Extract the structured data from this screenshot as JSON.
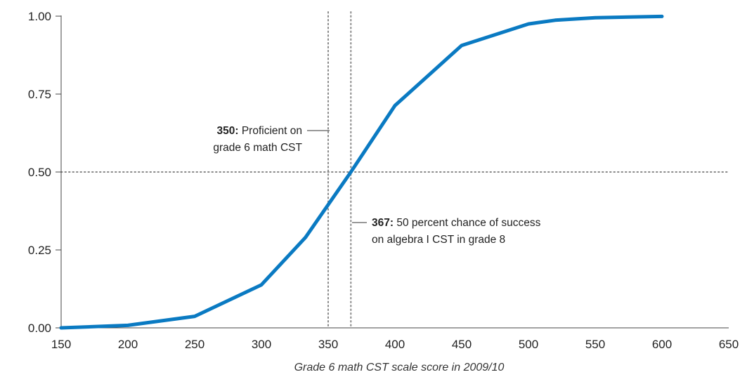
{
  "chart_data": {
    "type": "line",
    "xlabel": "Grade 6 math CST scale score in 2009/10",
    "ylabel": "",
    "xlim": [
      150,
      650
    ],
    "ylim": [
      0,
      1
    ],
    "x_ticks": [
      150,
      200,
      250,
      300,
      350,
      400,
      450,
      500,
      550,
      600,
      650
    ],
    "x_tick_labels": [
      "150",
      "200",
      "250",
      "300",
      "350",
      "400",
      "450",
      "500",
      "550",
      "600",
      "650"
    ],
    "y_ticks": [
      0,
      0.25,
      0.5,
      0.75,
      1
    ],
    "y_tick_labels": [
      "0.00",
      "0.25",
      "0.50",
      "0.75",
      "1.00"
    ],
    "grid": false,
    "series": [
      {
        "color": "#0a7ac2",
        "points": [
          [
            150,
            0.0
          ],
          [
            200,
            0.008
          ],
          [
            250,
            0.037
          ],
          [
            300,
            0.138
          ],
          [
            333,
            0.29
          ],
          [
            367,
            0.5
          ],
          [
            400,
            0.713
          ],
          [
            450,
            0.906
          ],
          [
            500,
            0.975
          ],
          [
            520,
            0.987
          ],
          [
            550,
            0.995
          ],
          [
            600,
            0.999
          ]
        ]
      }
    ],
    "reference_lines": [
      {
        "axis": "x",
        "value": 350
      },
      {
        "axis": "x",
        "value": 367
      },
      {
        "axis": "y",
        "value": 0.5
      }
    ],
    "annotations": [
      {
        "x": 350,
        "bold": "350:",
        "lines": [
          "Proficient on",
          "grade 6 math CST"
        ]
      },
      {
        "x": 367,
        "bold": "367:",
        "lines": [
          "50 percent chance of success",
          "on algebra I CST in grade 8"
        ]
      }
    ]
  }
}
